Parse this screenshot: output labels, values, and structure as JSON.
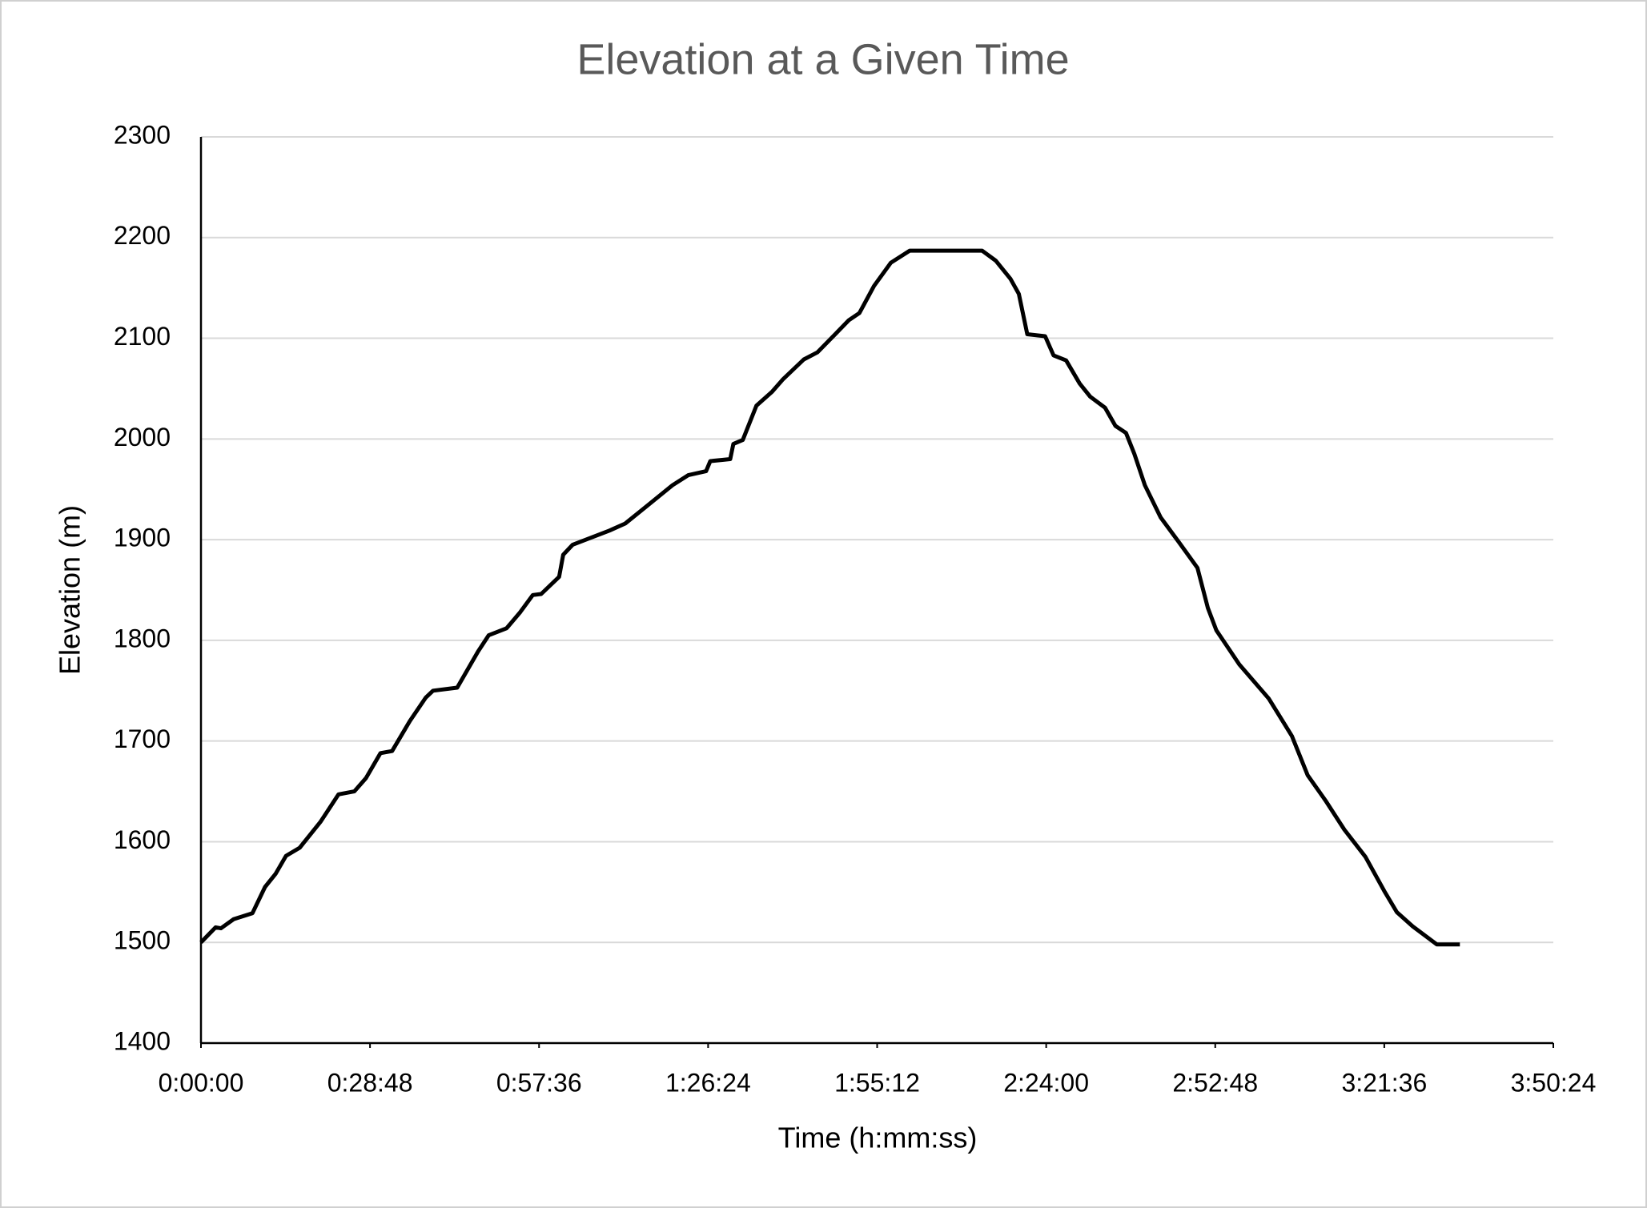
{
  "chart_data": {
    "type": "line",
    "title": "Elevation at a Given Time",
    "x_label": "Time (h:mm:ss)",
    "y_label": "Elevation (m)",
    "color": "#000000",
    "grid": true,
    "x": [
      0,
      150,
      204,
      333,
      526,
      655,
      762,
      869,
      1009,
      1224,
      1406,
      1567,
      1685,
      1835,
      1954,
      2136,
      2297,
      2372,
      2619,
      2833,
      2941,
      3124,
      3263,
      3392,
      3478,
      3661,
      3703,
      3800,
      4175,
      4336,
      4604,
      4819,
      4980,
      5163,
      5206,
      5410,
      5442,
      5539,
      5678,
      5839,
      5947,
      6162,
      6301,
      6483,
      6623,
      6730,
      6880,
      7052,
      7245,
      7985,
      8125,
      8275,
      8361,
      8447,
      8629,
      8715,
      8844,
      8983,
      9090,
      9241,
      9348,
      9456,
      9542,
      9649,
      9810,
      9993,
      10186,
      10293,
      10379,
      10615,
      10916,
      11152,
      11313,
      11495,
      11688,
      11903,
      12096,
      12225,
      12386,
      12633,
      12869
    ],
    "values": [
      1500,
      1515,
      1514,
      1523,
      1529,
      1555,
      1568,
      1586,
      1594,
      1620,
      1647,
      1650,
      1663,
      1688,
      1690,
      1720,
      1743,
      1750,
      1753,
      1789,
      1805,
      1812,
      1828,
      1845,
      1846,
      1863,
      1885,
      1895,
      1909,
      1916,
      1937,
      1954,
      1964,
      1968,
      1978,
      1980,
      1995,
      1999,
      2033,
      2047,
      2059,
      2079,
      2086,
      2104,
      2118,
      2125,
      2152,
      2175,
      2187,
      2187,
      2177,
      2159,
      2144,
      2104,
      2102,
      2083,
      2078,
      2055,
      2042,
      2031,
      2013,
      2006,
      1985,
      1954,
      1922,
      1898,
      1872,
      1832,
      1810,
      1776,
      1742,
      1705,
      1666,
      1641,
      1612,
      1585,
      1551,
      1530,
      1516,
      1498,
      1498
    ],
    "xlim": [
      0,
      13824
    ],
    "xticks": [
      {
        "value": 0,
        "label": "0:00:00"
      },
      {
        "value": 1728,
        "label": "0:28:48"
      },
      {
        "value": 3456,
        "label": "0:57:36"
      },
      {
        "value": 5184,
        "label": "1:26:24"
      },
      {
        "value": 6912,
        "label": "1:55:12"
      },
      {
        "value": 8640,
        "label": "2:24:00"
      },
      {
        "value": 10368,
        "label": "2:52:48"
      },
      {
        "value": 12096,
        "label": "3:21:36"
      },
      {
        "value": 13824,
        "label": "3:50:24"
      }
    ],
    "ylim": [
      1400,
      2300
    ],
    "yticks": [
      1400,
      1500,
      1600,
      1700,
      1800,
      1900,
      2000,
      2100,
      2200,
      2300
    ]
  }
}
